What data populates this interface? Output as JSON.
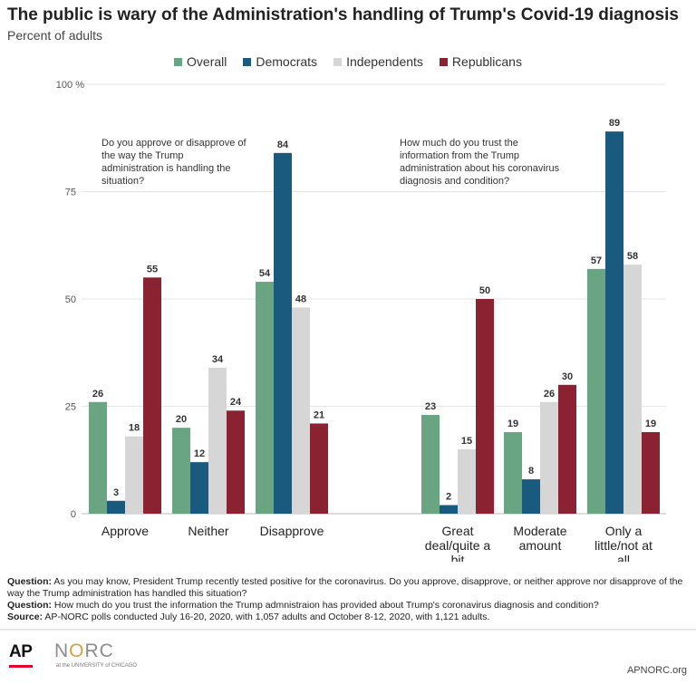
{
  "header": {
    "title": "The public is wary of the Administration's handling of Trump's Covid-19 diagnosis",
    "subtitle": "Percent of adults"
  },
  "colors": {
    "overall": "#6aa583",
    "democrats": "#1a5a7e",
    "independents": "#d6d6d6",
    "republicans": "#8b2231"
  },
  "chart_data": {
    "type": "bar",
    "ylim": [
      0,
      100
    ],
    "yticks": [
      0,
      25,
      50,
      75
    ],
    "ytop_label": "100 %",
    "grid": true,
    "legend_position": "top",
    "series_names": [
      "Overall",
      "Democrats",
      "Independents",
      "Republicans"
    ],
    "panels": [
      {
        "question": "Do you approve or disapprove of the way the Trump administration is handling the situation?",
        "categories": [
          "Approve",
          "Neither",
          "Disapprove"
        ],
        "series": [
          {
            "name": "Overall",
            "values": [
              26,
              20,
              54
            ]
          },
          {
            "name": "Democrats",
            "values": [
              3,
              12,
              84
            ]
          },
          {
            "name": "Independents",
            "values": [
              18,
              34,
              48
            ]
          },
          {
            "name": "Republicans",
            "values": [
              55,
              24,
              21
            ]
          }
        ]
      },
      {
        "question": "How much do you trust the information from the Trump administration about his coronavirus diagnosis and condition?",
        "categories": [
          "Great deal/quite a bit",
          "Moderate amount",
          "Only a little/not at all"
        ],
        "series": [
          {
            "name": "Overall",
            "values": [
              23,
              19,
              57
            ]
          },
          {
            "name": "Democrats",
            "values": [
              2,
              8,
              89
            ]
          },
          {
            "name": "Independents",
            "values": [
              15,
              26,
              58
            ]
          },
          {
            "name": "Republicans",
            "values": [
              50,
              30,
              19
            ]
          }
        ]
      }
    ]
  },
  "notes": {
    "q1_label": "Question:",
    "q1_text": " As you may know, President Trump recently tested positive for the coronavirus. Do you approve, disapprove, or neither approve nor disapprove of the way the Trump administration has handled this situation?",
    "q2_label": "Question:",
    "q2_text": " How much do you trust the information the Trump admnistraion has provided about Trump's coronavirus diagnosis and condition?",
    "source_label": "Source:",
    "source_text": " AP-NORC polls conducted July 16-20, 2020, with 1,057 adults and October 8-12, 2020, with 1,121 adults."
  },
  "footer": {
    "ap_logo": "AP",
    "norc_n": "N",
    "norc_o": "O",
    "norc_rc": "RC",
    "norc_sub": "at the UNIVERSITY of CHICAGO",
    "site": "APNORC.org"
  }
}
